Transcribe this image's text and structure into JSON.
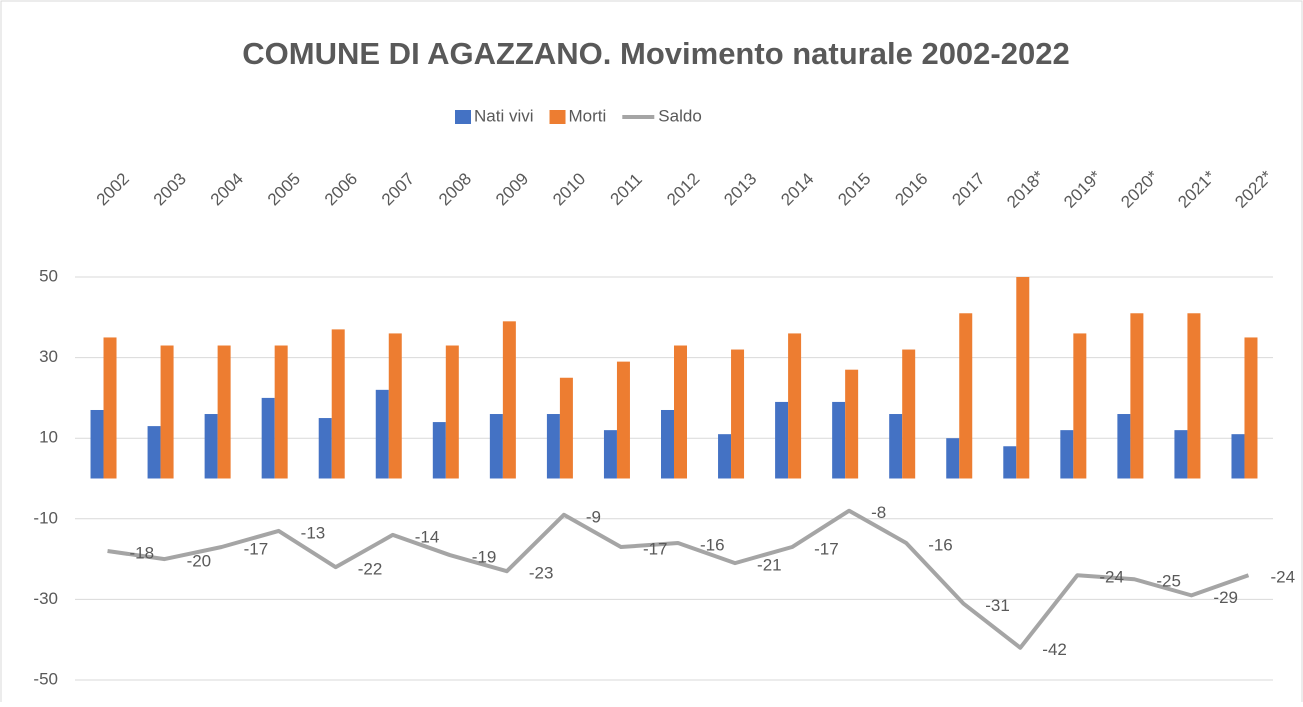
{
  "chart_data": {
    "type": "bar",
    "title": "COMUNE DI AGAZZANO. Movimento naturale 2002-2022",
    "categories": [
      "2002",
      "2003",
      "2004",
      "2005",
      "2006",
      "2007",
      "2008",
      "2009",
      "2010",
      "2011",
      "2012",
      "2013",
      "2014",
      "2015",
      "2016",
      "2017",
      "2018*",
      "2019*",
      "2020*",
      "2021*",
      "2022*"
    ],
    "series": [
      {
        "name": "Nati vivi",
        "color": "#4472c4",
        "type": "bar",
        "values": [
          17,
          13,
          16,
          20,
          15,
          22,
          14,
          16,
          16,
          12,
          17,
          11,
          19,
          19,
          16,
          10,
          8,
          12,
          16,
          12,
          11
        ]
      },
      {
        "name": "Morti",
        "color": "#ed7d31",
        "type": "bar",
        "values": [
          35,
          33,
          33,
          33,
          37,
          36,
          33,
          39,
          25,
          29,
          33,
          32,
          36,
          27,
          32,
          41,
          50,
          36,
          41,
          41,
          35
        ]
      },
      {
        "name": "Saldo",
        "color": "#a5a5a5",
        "type": "line",
        "data_labels": true,
        "values": [
          -18,
          -20,
          -17,
          -13,
          -22,
          -14,
          -19,
          -23,
          -9,
          -17,
          -16,
          -21,
          -17,
          -8,
          -16,
          -31,
          -42,
          -24,
          -25,
          -29,
          -24
        ]
      }
    ],
    "ylim": [
      -50,
      50
    ],
    "yticks": [
      -50,
      -30,
      -10,
      10,
      30,
      50
    ],
    "grid": true,
    "legend": "top"
  }
}
